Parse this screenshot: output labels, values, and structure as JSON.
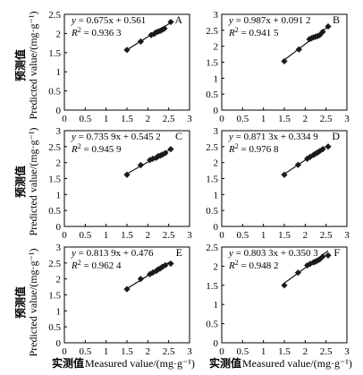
{
  "figure": {
    "y_axis_cn": "预测值",
    "y_axis_en": "Predicted value/(mg·g⁻¹)",
    "x_axis_cn": "实测值",
    "x_axis_en": "Measured value/(mg·g⁻¹)"
  },
  "chart_data": [
    {
      "type": "scatter",
      "label": "A",
      "eq_y": "y",
      "eq_rest": " = 0.675x + 0.561",
      "r2_value": " = 0.936 3",
      "xlim": [
        0,
        3.0
      ],
      "xticks": [
        0,
        0.5,
        1.0,
        1.5,
        2.0,
        2.5,
        3.0
      ],
      "ylim": [
        0,
        2.5
      ],
      "yticks": [
        0,
        0.5,
        1.0,
        1.5,
        2.0,
        2.5
      ],
      "fit": {
        "slope": 0.675,
        "intercept": 0.561,
        "x_range": [
          1.5,
          2.55
        ]
      },
      "points": [
        [
          1.5,
          1.57
        ],
        [
          1.83,
          1.79
        ],
        [
          2.08,
          1.96
        ],
        [
          2.15,
          1.99
        ],
        [
          2.2,
          2.03
        ],
        [
          2.25,
          2.05
        ],
        [
          2.3,
          2.07
        ],
        [
          2.35,
          2.1
        ],
        [
          2.4,
          2.13
        ],
        [
          2.55,
          2.3
        ]
      ]
    },
    {
      "type": "scatter",
      "label": "B",
      "eq_y": "y",
      "eq_rest": " = 0.987x + 0.091 2",
      "r2_value": " = 0.941 5",
      "xlim": [
        0,
        3.0
      ],
      "xticks": [
        0,
        0.5,
        1.0,
        1.5,
        2.0,
        2.5,
        3.0
      ],
      "ylim": [
        0,
        3.0
      ],
      "yticks": [
        0,
        0.5,
        1.0,
        1.5,
        2.0,
        2.5,
        3.0
      ],
      "fit": {
        "slope": 0.987,
        "intercept": 0.0912,
        "x_range": [
          1.5,
          2.55
        ]
      },
      "points": [
        [
          1.5,
          1.53
        ],
        [
          1.85,
          1.9
        ],
        [
          2.1,
          2.22
        ],
        [
          2.15,
          2.25
        ],
        [
          2.2,
          2.28
        ],
        [
          2.25,
          2.3
        ],
        [
          2.3,
          2.32
        ],
        [
          2.35,
          2.35
        ],
        [
          2.42,
          2.45
        ],
        [
          2.55,
          2.62
        ]
      ]
    },
    {
      "type": "scatter",
      "label": "C",
      "eq_y": "y",
      "eq_rest": " = 0.735 9x + 0.545 2",
      "r2_value": " = 0.945 9",
      "xlim": [
        0,
        3.0
      ],
      "xticks": [
        0,
        0.5,
        1.0,
        1.5,
        2.0,
        2.5,
        3.0
      ],
      "ylim": [
        0,
        3.0
      ],
      "yticks": [
        0,
        0.5,
        1.0,
        1.5,
        2.0,
        2.5,
        3.0
      ],
      "fit": {
        "slope": 0.7359,
        "intercept": 0.5452,
        "x_range": [
          1.5,
          2.55
        ]
      },
      "points": [
        [
          1.5,
          1.62
        ],
        [
          1.83,
          1.92
        ],
        [
          2.05,
          2.08
        ],
        [
          2.12,
          2.12
        ],
        [
          2.2,
          2.15
        ],
        [
          2.25,
          2.2
        ],
        [
          2.3,
          2.22
        ],
        [
          2.35,
          2.25
        ],
        [
          2.42,
          2.3
        ],
        [
          2.55,
          2.42
        ]
      ]
    },
    {
      "type": "scatter",
      "label": "D",
      "eq_y": "y",
      "eq_rest": " = 0.871 3x + 0.334 9",
      "r2_value": " = 0.976 8",
      "xlim": [
        0,
        3.0
      ],
      "xticks": [
        0,
        0.5,
        1.0,
        1.5,
        2.0,
        2.5,
        3.0
      ],
      "ylim": [
        0,
        3.0
      ],
      "yticks": [
        0,
        0.5,
        1.0,
        1.5,
        2.0,
        2.5,
        3.0
      ],
      "fit": {
        "slope": 0.8713,
        "intercept": 0.3349,
        "x_range": [
          1.5,
          2.55
        ]
      },
      "points": [
        [
          1.5,
          1.62
        ],
        [
          1.83,
          1.93
        ],
        [
          2.05,
          2.12
        ],
        [
          2.12,
          2.18
        ],
        [
          2.2,
          2.24
        ],
        [
          2.25,
          2.28
        ],
        [
          2.3,
          2.32
        ],
        [
          2.35,
          2.36
        ],
        [
          2.42,
          2.42
        ],
        [
          2.55,
          2.5
        ]
      ]
    },
    {
      "type": "scatter",
      "label": "E",
      "eq_y": "y",
      "eq_rest": " = 0.813 9x + 0.476",
      "r2_value": " = 0.962 4",
      "xlim": [
        0,
        3.0
      ],
      "xticks": [
        0,
        0.5,
        1.0,
        1.5,
        2.0,
        2.5,
        3.0
      ],
      "ylim": [
        0,
        3.0
      ],
      "yticks": [
        0,
        0.5,
        1.0,
        1.5,
        2.0,
        2.5,
        3.0
      ],
      "fit": {
        "slope": 0.8139,
        "intercept": 0.476,
        "x_range": [
          1.5,
          2.55
        ]
      },
      "points": [
        [
          1.5,
          1.68
        ],
        [
          1.83,
          2.0
        ],
        [
          2.05,
          2.15
        ],
        [
          2.12,
          2.2
        ],
        [
          2.2,
          2.25
        ],
        [
          2.25,
          2.3
        ],
        [
          2.3,
          2.33
        ],
        [
          2.35,
          2.38
        ],
        [
          2.42,
          2.43
        ],
        [
          2.55,
          2.48
        ]
      ]
    },
    {
      "type": "scatter",
      "label": "F",
      "eq_y": "y",
      "eq_rest": " = 0.803 3x + 0.350 3",
      "r2_value": " = 0.948 2",
      "xlim": [
        0,
        3.0
      ],
      "xticks": [
        0,
        0.5,
        1.0,
        1.5,
        2.0,
        2.5,
        3.0
      ],
      "ylim": [
        0,
        2.5
      ],
      "yticks": [
        0,
        0.5,
        1.0,
        1.5,
        2.0,
        2.5
      ],
      "fit": {
        "slope": 0.8033,
        "intercept": 0.3503,
        "x_range": [
          1.5,
          2.55
        ]
      },
      "points": [
        [
          1.5,
          1.5
        ],
        [
          1.83,
          1.83
        ],
        [
          2.05,
          2.02
        ],
        [
          2.12,
          2.06
        ],
        [
          2.2,
          2.1
        ],
        [
          2.25,
          2.12
        ],
        [
          2.3,
          2.15
        ],
        [
          2.35,
          2.18
        ],
        [
          2.42,
          2.25
        ],
        [
          2.55,
          2.28
        ]
      ]
    }
  ]
}
